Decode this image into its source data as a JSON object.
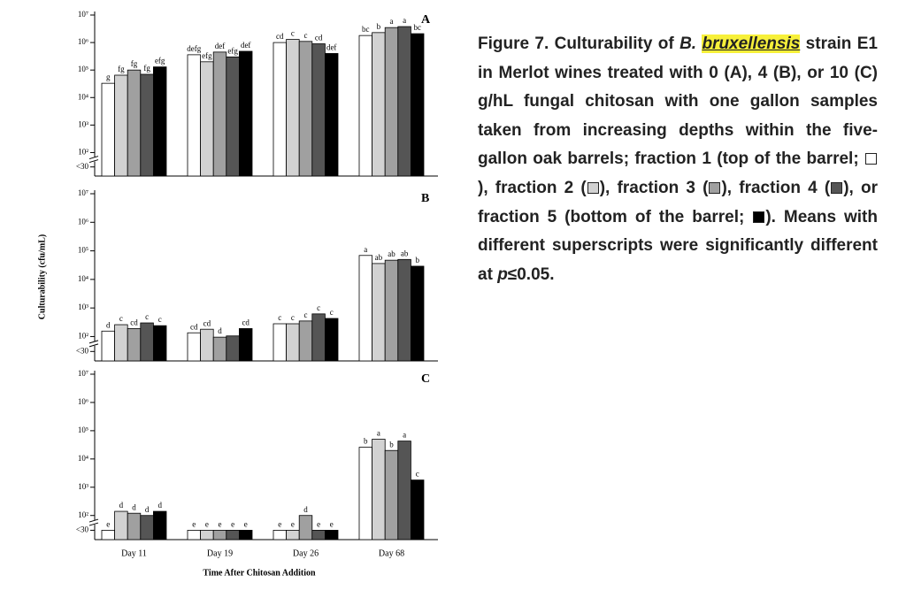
{
  "chart_data": [
    {
      "type": "bar",
      "panel": "A",
      "log": true,
      "ylim": [
        14,
        10000000
      ],
      "yticks": [
        {
          "value": 30,
          "label": "<30"
        },
        {
          "value": 100,
          "label": "10²"
        },
        {
          "value": 1000,
          "label": "10³"
        },
        {
          "value": 10000,
          "label": "10⁴"
        },
        {
          "value": 100000,
          "label": "10⁵"
        },
        {
          "value": 1000000,
          "label": "10⁶"
        },
        {
          "value": 10000000,
          "label": "10⁷"
        }
      ],
      "series": [
        {
          "color": "#ffffff",
          "values": [
            33000,
            360000,
            1000000,
            1800000
          ],
          "letters": [
            "g",
            "defg",
            "cd",
            "bc"
          ]
        },
        {
          "color": "#d2d2d2",
          "values": [
            65000,
            200000,
            1300000,
            2300000
          ],
          "letters": [
            "fg",
            "efg",
            "c",
            "b"
          ]
        },
        {
          "color": "#a0a0a0",
          "values": [
            100000,
            450000,
            1100000,
            3500000
          ],
          "letters": [
            "fg",
            "def",
            "c",
            "a"
          ]
        },
        {
          "color": "#555555",
          "values": [
            70000,
            300000,
            900000,
            3800000
          ],
          "letters": [
            "fg",
            "efg",
            "cd",
            "a"
          ]
        },
        {
          "color": "#000000",
          "values": [
            130000,
            480000,
            400000,
            2100000
          ],
          "letters": [
            "efg",
            "def",
            "def",
            "bc"
          ]
        }
      ]
    },
    {
      "type": "bar",
      "panel": "B",
      "log": true,
      "ylim": [
        14,
        10000000
      ],
      "ylabel": "Culturability (cfu/mL)",
      "yticks": [
        {
          "value": 30,
          "label": "<30"
        },
        {
          "value": 100,
          "label": "10²"
        },
        {
          "value": 1000,
          "label": "10³"
        },
        {
          "value": 10000,
          "label": "10⁴"
        },
        {
          "value": 100000,
          "label": "10⁵"
        },
        {
          "value": 1000000,
          "label": "10⁶"
        },
        {
          "value": 10000000,
          "label": "10⁷"
        }
      ],
      "series": [
        {
          "color": "#ffffff",
          "values": [
            155,
            135,
            280,
            69000
          ],
          "letters": [
            "d",
            "cd",
            "c",
            "a"
          ]
        },
        {
          "color": "#d2d2d2",
          "values": [
            260,
            180,
            280,
            36000
          ],
          "letters": [
            "c",
            "cd",
            "c",
            "ab"
          ]
        },
        {
          "color": "#a0a0a0",
          "values": [
            190,
            95,
            350,
            47000
          ],
          "letters": [
            "cd",
            "d",
            "c",
            "ab"
          ]
        },
        {
          "color": "#555555",
          "values": [
            300,
            105,
            620,
            50000
          ],
          "letters": [
            "c",
            null,
            "c",
            "ab"
          ]
        },
        {
          "color": "#000000",
          "values": [
            240,
            190,
            430,
            29000
          ],
          "letters": [
            "c",
            "cd",
            "c",
            "b"
          ]
        }
      ]
    },
    {
      "type": "bar",
      "panel": "C",
      "log": true,
      "ylim": [
        14,
        10000000
      ],
      "categories": [
        "Day 11",
        "Day 19",
        "Day 26",
        "Day 68"
      ],
      "xlabel": "Time After Chitosan Addition",
      "yticks": [
        {
          "value": 30,
          "label": "<30"
        },
        {
          "value": 100,
          "label": "10²"
        },
        {
          "value": 1000,
          "label": "10³"
        },
        {
          "value": 10000,
          "label": "10⁴"
        },
        {
          "value": 100000,
          "label": "10⁵"
        },
        {
          "value": 1000000,
          "label": "10⁶"
        },
        {
          "value": 10000000,
          "label": "10⁷"
        }
      ],
      "series": [
        {
          "color": "#ffffff",
          "values": [
            30,
            30,
            30,
            26000
          ],
          "letters": [
            "e",
            "e",
            "e",
            "b"
          ]
        },
        {
          "color": "#d2d2d2",
          "values": [
            140,
            30,
            30,
            50000
          ],
          "letters": [
            "d",
            "e",
            "e",
            "a"
          ]
        },
        {
          "color": "#a0a0a0",
          "values": [
            120,
            30,
            100,
            20000
          ],
          "letters": [
            "d",
            "e",
            "d",
            "b"
          ]
        },
        {
          "color": "#555555",
          "values": [
            100,
            30,
            30,
            43000
          ],
          "letters": [
            "d",
            "e",
            "e",
            "a"
          ]
        },
        {
          "color": "#000000",
          "values": [
            140,
            30,
            30,
            1800
          ],
          "letters": [
            "d",
            "e",
            "e",
            "c"
          ]
        }
      ]
    }
  ],
  "caption": {
    "segments": [
      "Figure 7. Culturability of ",
      "B. ",
      "bruxellensis",
      " strain E1 in Merlot wines treated with 0 (A), 4 (B), or 10 (C) g/hL fungal chitosan with one gallon samples taken from increasing depths within the five-gallon oak barrels; fraction 1 (top of the barrel; ",
      "), fraction 2 (",
      "), fraction 3 (",
      "), fraction 4 (",
      "), or fraction 5 (bottom of the barrel; ",
      "). Means with different superscripts were significantly different at ",
      "p",
      "≤0.05."
    ]
  }
}
